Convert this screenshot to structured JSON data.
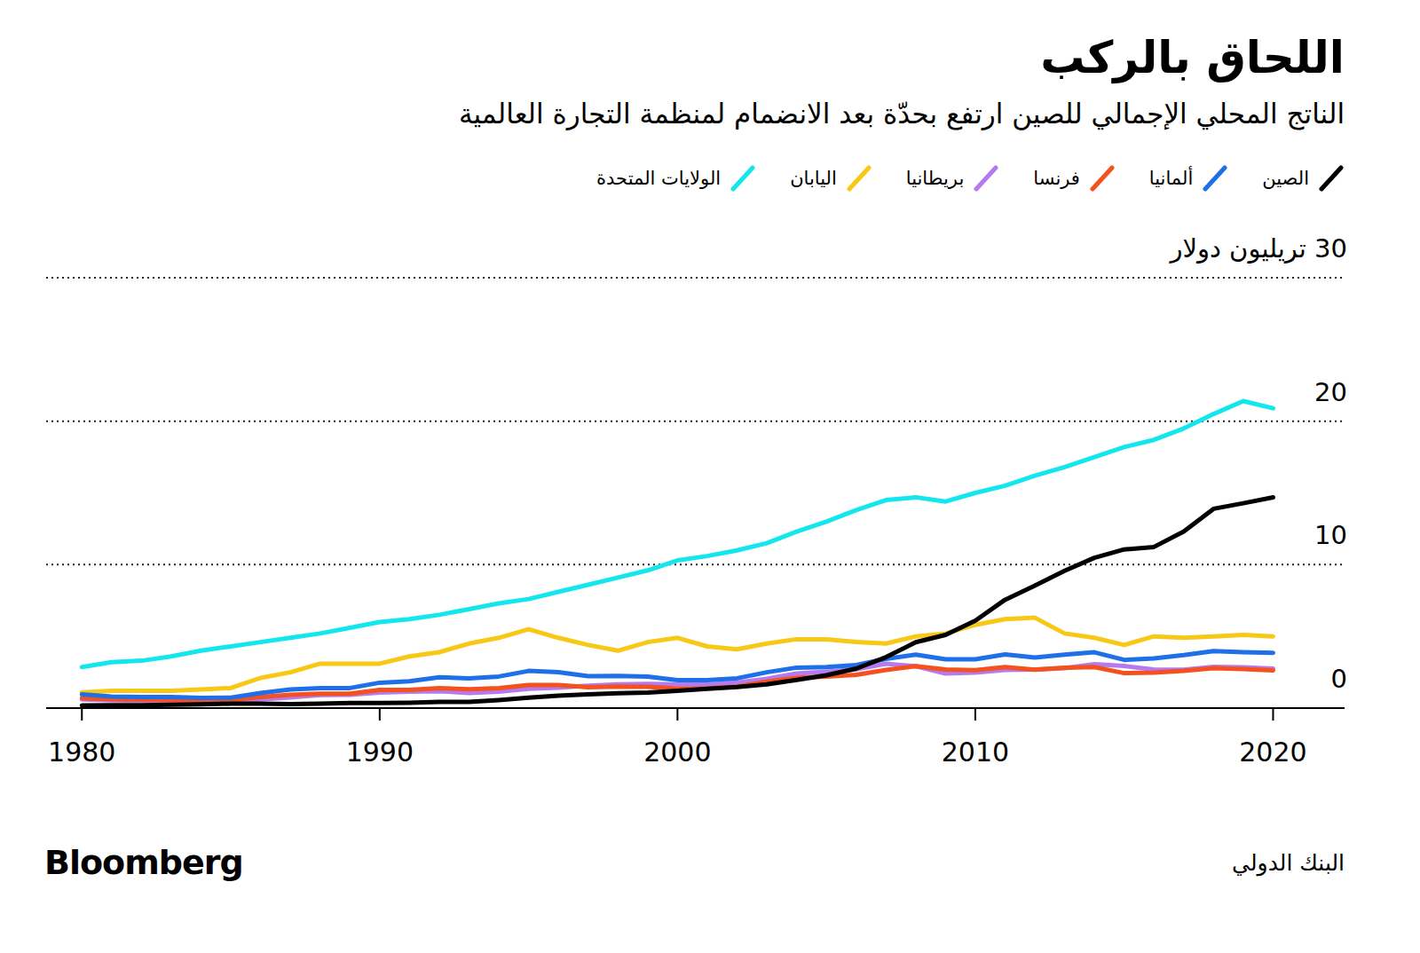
{
  "chart_data": {
    "type": "line",
    "title": "اللحاق بالركب",
    "subtitle": "الناتج المحلي الإجمالي للصين ارتفع بحدّة بعد الانضمام لمنظمة التجارة العالمية",
    "source": "البنك الدولي",
    "brand": "Bloomberg",
    "x": [
      1980,
      1981,
      1982,
      1983,
      1984,
      1985,
      1986,
      1987,
      1988,
      1989,
      1990,
      1991,
      1992,
      1993,
      1994,
      1995,
      1996,
      1997,
      1998,
      1999,
      2000,
      2001,
      2002,
      2003,
      2004,
      2005,
      2006,
      2007,
      2008,
      2009,
      2010,
      2011,
      2012,
      2013,
      2014,
      2015,
      2016,
      2017,
      2018,
      2019,
      2020
    ],
    "xlim": [
      1978.8,
      2022.4
    ],
    "xticks": [
      1980,
      1990,
      2000,
      2010,
      2020
    ],
    "ylim": [
      0,
      30
    ],
    "yticks": [
      0,
      10,
      20,
      {
        "value": 30,
        "label": "30 تريليون دولار"
      }
    ],
    "grid": true,
    "legend": "top",
    "series": [
      {
        "name": "الصين",
        "color": "#000000",
        "values": [
          0.19,
          0.2,
          0.2,
          0.23,
          0.26,
          0.31,
          0.3,
          0.27,
          0.31,
          0.35,
          0.36,
          0.38,
          0.43,
          0.44,
          0.56,
          0.73,
          0.86,
          0.96,
          1.03,
          1.09,
          1.21,
          1.34,
          1.47,
          1.66,
          1.96,
          2.29,
          2.75,
          3.55,
          4.59,
          5.1,
          6.09,
          7.55,
          8.53,
          9.57,
          10.48,
          11.06,
          11.23,
          12.31,
          13.89,
          14.28,
          14.69
        ]
      },
      {
        "name": "ألمانيا",
        "color": "#1f6fe8",
        "values": [
          0.95,
          0.8,
          0.78,
          0.77,
          0.72,
          0.73,
          1.05,
          1.3,
          1.4,
          1.4,
          1.77,
          1.87,
          2.15,
          2.07,
          2.2,
          2.59,
          2.5,
          2.22,
          2.24,
          2.2,
          1.95,
          1.95,
          2.08,
          2.5,
          2.82,
          2.86,
          3.0,
          3.43,
          3.73,
          3.4,
          3.4,
          3.74,
          3.53,
          3.73,
          3.89,
          3.36,
          3.47,
          3.69,
          3.98,
          3.89,
          3.85
        ]
      },
      {
        "name": "فرنسا",
        "color": "#f4511e",
        "values": [
          0.7,
          0.6,
          0.58,
          0.56,
          0.53,
          0.55,
          0.77,
          0.92,
          1.0,
          1.0,
          1.27,
          1.27,
          1.4,
          1.32,
          1.39,
          1.6,
          1.6,
          1.45,
          1.5,
          1.49,
          1.36,
          1.38,
          1.5,
          1.84,
          2.12,
          2.2,
          2.32,
          2.66,
          2.92,
          2.69,
          2.64,
          2.86,
          2.68,
          2.81,
          2.86,
          2.44,
          2.47,
          2.6,
          2.79,
          2.73,
          2.63
        ]
      },
      {
        "name": "بريطانيا",
        "color": "#b57bee",
        "values": [
          0.6,
          0.54,
          0.51,
          0.49,
          0.46,
          0.49,
          0.6,
          0.75,
          0.91,
          0.93,
          1.09,
          1.14,
          1.18,
          1.06,
          1.14,
          1.34,
          1.42,
          1.56,
          1.65,
          1.69,
          1.66,
          1.64,
          1.78,
          2.05,
          2.42,
          2.54,
          2.71,
          3.09,
          2.92,
          2.41,
          2.48,
          2.66,
          2.7,
          2.78,
          3.06,
          2.93,
          2.69,
          2.68,
          2.87,
          2.85,
          2.76
        ]
      },
      {
        "name": "اليابان",
        "color": "#f7c815",
        "values": [
          1.1,
          1.2,
          1.2,
          1.2,
          1.3,
          1.4,
          2.1,
          2.5,
          3.1,
          3.1,
          3.1,
          3.6,
          3.9,
          4.5,
          4.9,
          5.5,
          4.9,
          4.4,
          4.0,
          4.6,
          4.9,
          4.3,
          4.1,
          4.5,
          4.8,
          4.8,
          4.6,
          4.5,
          5.0,
          5.2,
          5.8,
          6.2,
          6.3,
          5.2,
          4.9,
          4.4,
          5.0,
          4.9,
          5.0,
          5.1,
          5.0
        ]
      },
      {
        "name": "الولايات المتحدة",
        "color": "#14e6ee",
        "values": [
          2.86,
          3.2,
          3.3,
          3.6,
          4.0,
          4.3,
          4.6,
          4.9,
          5.2,
          5.6,
          6.0,
          6.2,
          6.5,
          6.9,
          7.3,
          7.6,
          8.1,
          8.6,
          9.1,
          9.6,
          10.3,
          10.6,
          11.0,
          11.5,
          12.3,
          13.0,
          13.8,
          14.5,
          14.7,
          14.4,
          15.0,
          15.5,
          16.2,
          16.8,
          17.5,
          18.2,
          18.7,
          19.5,
          20.5,
          21.4,
          20.9
        ]
      }
    ]
  }
}
